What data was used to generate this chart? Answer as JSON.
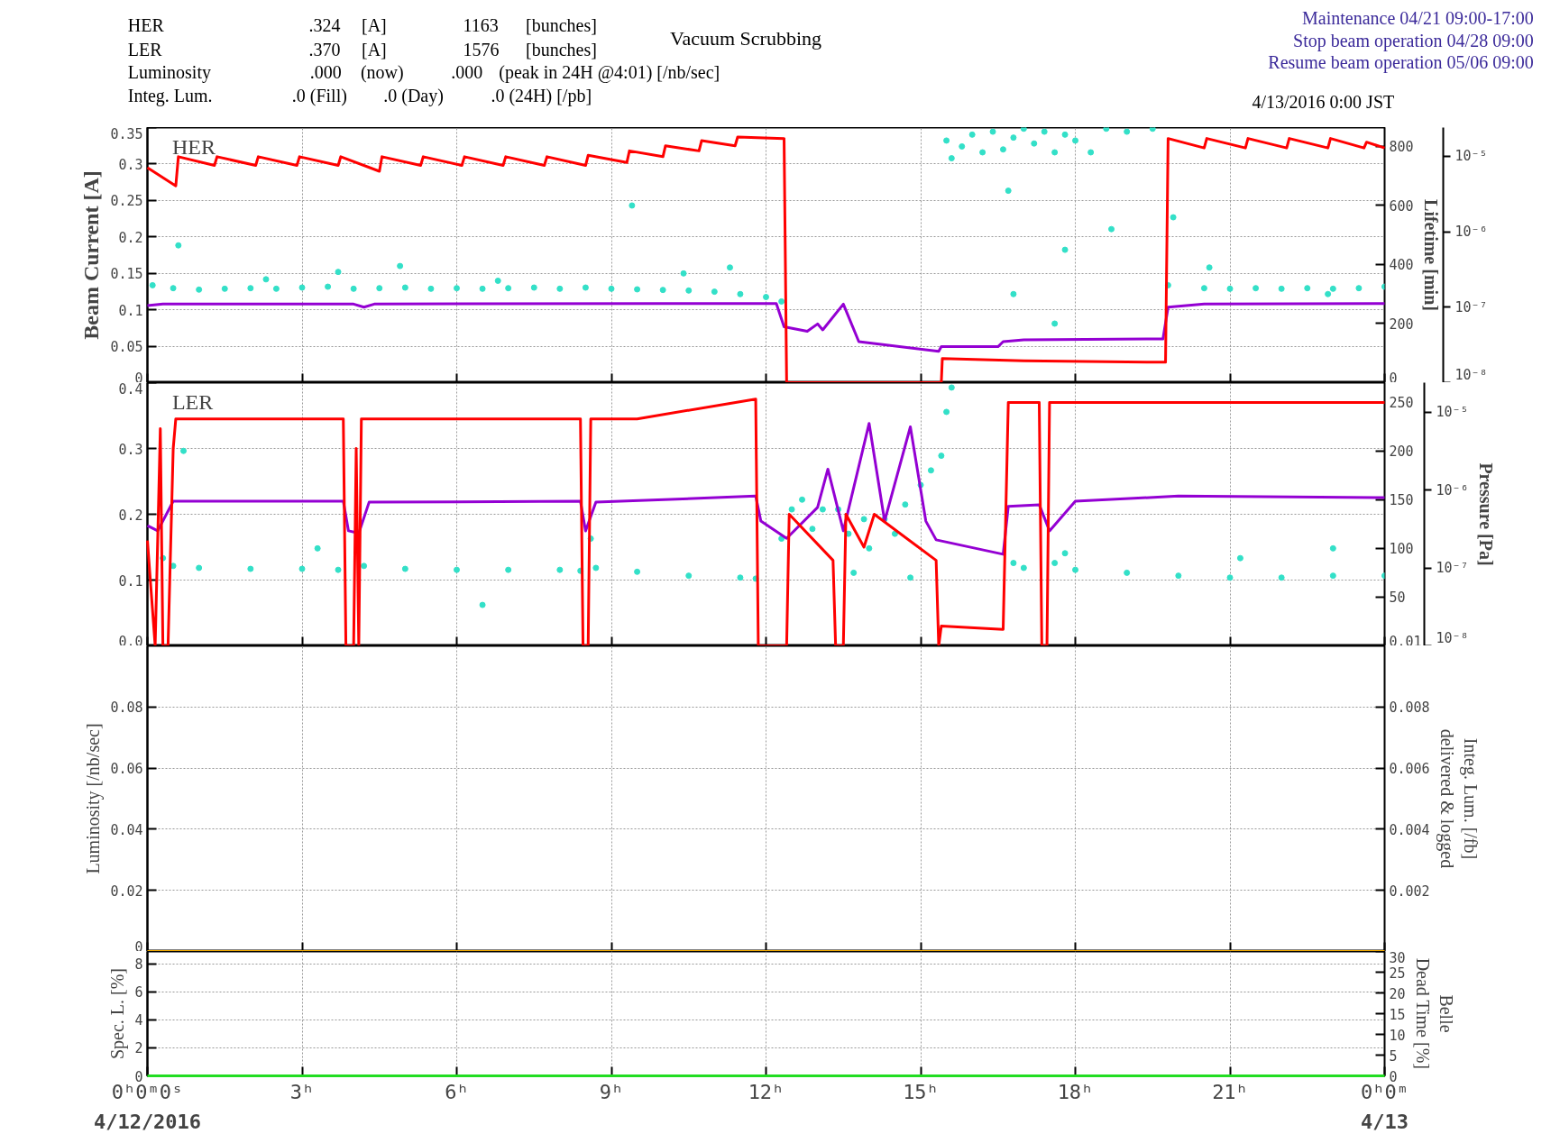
{
  "chart_data": [
    {
      "type": "line",
      "title": "HER",
      "ylabel": "Beam Current [A]",
      "y2label": "Lifetime [min]",
      "xlim": [
        0,
        24
      ],
      "xticks": [
        0,
        3,
        6,
        9,
        12,
        15,
        18,
        21,
        24
      ],
      "ylim": [
        0,
        0.35
      ],
      "yticks": [
        0,
        0.05,
        0.1,
        0.15,
        0.2,
        0.25,
        0.3,
        0.35
      ],
      "y2lim": [
        0,
        864
      ],
      "y2ticks": [
        0,
        200,
        400,
        600,
        800
      ],
      "y3lim": [
        1e-08,
        2.4e-05
      ],
      "y3ticks": [
        {
          "value": 1e-08,
          "label": "10⁻⁸"
        },
        {
          "value": 1e-07,
          "label": "10⁻⁷"
        },
        {
          "value": 1e-06,
          "label": "10⁻⁶"
        },
        {
          "value": 1e-05,
          "label": "10⁻⁵"
        }
      ],
      "log": "y3",
      "grid": true,
      "tick_labels": "y",
      "annotations": [
        "HER",
        ".324",
        "[A]",
        "1163",
        "[bunches]",
        "LER",
        ".370",
        "[A]",
        "1576",
        "[bunches]",
        "Luminosity",
        ".000",
        "(now)",
        ".000",
        "(peak in 24H @4:01) [/nb/sec]",
        "Integ. Lum.",
        ".0 (Fill)",
        ".0 (Day)",
        ".0 (24H) [/pb]",
        "Vacuum Scrubbing",
        "Maintenance 04/21 09:00-17:00",
        "Stop beam operation 04/28 09:00",
        "Resume beam operation 05/06 09:00",
        "4/13/2016 0:00 JST"
      ],
      "series": [
        {
          "type": "scatter",
          "axis": "y2",
          "color": "#33e0c8",
          "marker": "circle",
          "x": [
            0.1,
            0.5,
            1,
            1.5,
            2,
            2.5,
            3,
            3.5,
            4,
            4.5,
            5,
            5.5,
            6,
            6.5,
            7,
            7.5,
            8,
            8.5,
            9,
            9.5,
            10,
            10.5,
            11,
            11.5,
            12,
            12.3,
            0.6,
            2.3,
            3.7,
            4.9,
            6.8,
            9.4,
            10.4,
            11.3,
            15.5,
            15.6,
            15.8,
            16,
            16.2,
            16.4,
            16.6,
            16.8,
            17,
            17.2,
            17.4,
            17.6,
            17.8,
            18,
            18.3,
            18.6,
            19,
            19.5,
            16.7,
            16.8,
            17.6,
            17.8,
            18.7,
            19.8,
            20.5,
            21,
            21.5,
            22,
            22.5,
            23,
            23.5,
            24,
            19.9,
            20.6,
            22.9
          ],
          "values": [
            330,
            320,
            315,
            318,
            320,
            318,
            322,
            325,
            318,
            320,
            322,
            318,
            320,
            318,
            320,
            322,
            318,
            322,
            318,
            316,
            314,
            312,
            308,
            300,
            290,
            275,
            465,
            350,
            375,
            395,
            345,
            600,
            370,
            390,
            820,
            760,
            800,
            840,
            780,
            850,
            790,
            830,
            860,
            810,
            850,
            780,
            840,
            820,
            780,
            860,
            850,
            860,
            650,
            300,
            200,
            450,
            520,
            330,
            320,
            318,
            320,
            318,
            320,
            318,
            320,
            325,
            560,
            390,
            300
          ]
        },
        {
          "axis": "y3",
          "color": "#9400d3",
          "x": [
            0,
            0.3,
            4,
            4.2,
            4.4,
            10,
            12.2,
            12.35,
            12.8,
            13,
            13.1,
            13.5,
            13.8,
            15.35,
            15.4,
            16.5,
            16.6,
            17,
            19.7,
            19.8,
            20.5,
            24
          ],
          "values": [
            1.05e-07,
            1.1e-07,
            1.1e-07,
            1e-07,
            1.1e-07,
            1.12e-07,
            1.12e-07,
            5.5e-08,
            4.8e-08,
            6e-08,
            5e-08,
            1.1e-07,
            3.5e-08,
            2.6e-08,
            3e-08,
            3e-08,
            3.5e-08,
            3.7e-08,
            3.8e-08,
            1e-07,
            1.1e-07,
            1.12e-07
          ]
        },
        {
          "color": "#ff0000",
          "x": [
            0,
            0.55,
            0.6,
            1.3,
            1.35,
            2.1,
            2.15,
            2.9,
            2.95,
            3.7,
            3.75,
            4.5,
            4.55,
            5.3,
            5.35,
            6.1,
            6.15,
            6.9,
            6.95,
            7.7,
            7.75,
            8.5,
            8.55,
            9.3,
            9.35,
            10,
            10.05,
            10.7,
            10.75,
            11.4,
            11.45,
            12.35,
            12.4,
            15.4,
            15.42,
            17,
            19.75,
            19.8,
            20.5,
            20.55,
            21.3,
            21.35,
            22.1,
            22.15,
            22.9,
            22.95,
            23.6,
            23.65,
            24
          ],
          "values": [
            0.295,
            0.27,
            0.31,
            0.298,
            0.31,
            0.298,
            0.31,
            0.298,
            0.31,
            0.298,
            0.31,
            0.29,
            0.31,
            0.298,
            0.31,
            0.298,
            0.31,
            0.298,
            0.31,
            0.298,
            0.31,
            0.298,
            0.312,
            0.302,
            0.318,
            0.31,
            0.325,
            0.318,
            0.332,
            0.325,
            0.337,
            0.335,
            0,
            0,
            0.033,
            0.03,
            0.028,
            0.335,
            0.322,
            0.335,
            0.322,
            0.335,
            0.322,
            0.335,
            0.322,
            0.335,
            0.322,
            0.33,
            0.322
          ]
        }
      ]
    },
    {
      "type": "line",
      "title": "LER",
      "y3label": "Pressure [Pa]",
      "xlim": [
        0,
        24
      ],
      "xticks": [
        0,
        3,
        6,
        9,
        12,
        15,
        18,
        21,
        24
      ],
      "ylim": [
        0,
        0.4
      ],
      "yticks": [
        {
          "value": 0,
          "label": "0.0"
        },
        {
          "value": 0.1,
          "label": "0.1"
        },
        {
          "value": 0.2,
          "label": "0.2"
        },
        {
          "value": 0.3,
          "label": "0.3"
        },
        {
          "value": 0.4,
          "label": "0.4"
        }
      ],
      "y2lim": [
        0.01,
        270
      ],
      "y2ticks": [
        0.01,
        50,
        100,
        150,
        200,
        250
      ],
      "y3lim": [
        1e-08,
        2.4e-05
      ],
      "y3ticks": [
        {
          "value": 1e-08,
          "label": "10⁻⁸"
        },
        {
          "value": 1e-07,
          "label": "10⁻⁷"
        },
        {
          "value": 1e-06,
          "label": "10⁻⁶"
        },
        {
          "value": 1e-05,
          "label": "10⁻⁵"
        }
      ],
      "log": "y3",
      "grid": true,
      "tick_labels": "y",
      "series": [
        {
          "type": "scatter",
          "axis": "y2",
          "color": "#33e0c8",
          "marker": "circle",
          "x": [
            0.3,
            0.5,
            1,
            2,
            3,
            3.7,
            4.2,
            5,
            6,
            7,
            8,
            8.4,
            8.7,
            9.5,
            10.5,
            11.5,
            11.8,
            12.3,
            12.5,
            12.7,
            12.9,
            13.1,
            13.4,
            13.6,
            13.7,
            13.9,
            14,
            14.3,
            14.5,
            14.7,
            14.8,
            15,
            15.2,
            15.4,
            15.5,
            15.6,
            16.8,
            17,
            17.6,
            18,
            19,
            20,
            21,
            22,
            23,
            24,
            0.7,
            3.3,
            6.5,
            8.6,
            17.8,
            21.2,
            23
          ],
          "values": [
            90,
            82,
            80,
            79,
            79,
            78,
            82,
            79,
            78,
            78,
            78,
            77,
            80,
            76,
            72,
            70,
            69,
            110,
            140,
            150,
            120,
            140,
            140,
            115,
            75,
            130,
            100,
            130,
            115,
            145,
            70,
            165,
            180,
            195,
            240,
            265,
            85,
            80,
            85,
            78,
            75,
            72,
            70,
            70,
            72,
            72,
            200,
            100,
            42,
            110,
            95,
            90,
            100
          ]
        },
        {
          "axis": "y3",
          "color": "#9400d3",
          "x": [
            0,
            0.2,
            0.5,
            3.8,
            3.9,
            4.1,
            4.3,
            8.4,
            8.5,
            8.7,
            11.8,
            11.9,
            12.4,
            13,
            13.2,
            13.5,
            14,
            14.3,
            14.8,
            15.1,
            15.3,
            16.6,
            16.7,
            17.3,
            17.5,
            18,
            20,
            24
          ],
          "values": [
            3.5e-07,
            3e-07,
            7.2e-07,
            7.2e-07,
            3e-07,
            2.8e-07,
            7e-07,
            7.2e-07,
            3e-07,
            7e-07,
            8.4e-07,
            4e-07,
            2.4e-07,
            6e-07,
            1.86e-06,
            3e-07,
            7.2e-06,
            4e-07,
            6.5e-06,
            4e-07,
            2.3e-07,
            1.5e-07,
            6.2e-07,
            6.5e-07,
            3e-07,
            7.2e-07,
            8.4e-07,
            8e-07
          ]
        },
        {
          "color": "#ff0000",
          "x": [
            0,
            0.15,
            0.25,
            0.3,
            0.4,
            0.5,
            0.55,
            3.8,
            3.85,
            4.0,
            4.05,
            4.1,
            4.15,
            8.4,
            8.45,
            8.55,
            8.6,
            9.5,
            11.8,
            11.85,
            12.4,
            12.45,
            13.3,
            13.35,
            13.5,
            13.55,
            13.9,
            14.1,
            15.3,
            15.35,
            15.4,
            16.6,
            16.7,
            17.3,
            17.35,
            17.45,
            17.5,
            24
          ],
          "values": [
            0.16,
            0,
            0.33,
            0,
            0,
            0.3,
            0.345,
            0.345,
            0,
            0,
            0.3,
            0,
            0.345,
            0.345,
            0,
            0,
            0.345,
            0.345,
            0.375,
            0,
            0,
            0.2,
            0.13,
            0,
            0,
            0.2,
            0.15,
            0.2,
            0.13,
            0,
            0.03,
            0.025,
            0.37,
            0.37,
            0,
            0,
            0.37,
            0.37
          ]
        }
      ]
    },
    {
      "type": "line",
      "ylabel": "Luminosity [/nb/sec]",
      "y2label": "Integ. Lum. [/fb]\ndelivered & logged",
      "xlim": [
        0,
        24
      ],
      "xticks": [
        0,
        3,
        6,
        9,
        12,
        15,
        18,
        21,
        24
      ],
      "ylim": [
        0,
        0.1
      ],
      "yticks": [
        0,
        0.02,
        0.04,
        0.06,
        0.08
      ],
      "y2lim": [
        0,
        0.01
      ],
      "y2ticks": [
        0.002,
        0.004,
        0.006,
        0.008
      ],
      "grid": true,
      "tick_labels": "y",
      "series": [
        {
          "color": "#f0a800",
          "x": [
            0,
            24
          ],
          "values": [
            0,
            0
          ]
        }
      ]
    },
    {
      "type": "line",
      "ylabel": "Spec. L. [%]",
      "y2label": "Belle\nDead Time [%]",
      "xlim": [
        0,
        24
      ],
      "xticks": [
        {
          "value": 0,
          "label": "0ʰ0ᵐ0ˢ"
        },
        {
          "value": 3,
          "label": "3ʰ"
        },
        {
          "value": 6,
          "label": "6ʰ"
        },
        {
          "value": 9,
          "label": "9ʰ"
        },
        {
          "value": 12,
          "label": "12ʰ"
        },
        {
          "value": 15,
          "label": "15ʰ"
        },
        {
          "value": 18,
          "label": "18ʰ"
        },
        {
          "value": 21,
          "label": "21ʰ"
        },
        {
          "value": 24,
          "label": "0ʰ0ᵐ"
        }
      ],
      "ylim": [
        0,
        8.9
      ],
      "yticks": [
        0,
        2,
        4,
        6,
        8
      ],
      "y2lim": [
        0,
        30
      ],
      "y2ticks": [
        0,
        5,
        10,
        15,
        20,
        25,
        30
      ],
      "grid": true,
      "annotations": [
        "4/12/2016",
        "4/13"
      ],
      "series": [
        {
          "color": "#22dd22",
          "x": [
            0,
            24
          ],
          "values": [
            0,
            0
          ]
        }
      ]
    }
  ]
}
